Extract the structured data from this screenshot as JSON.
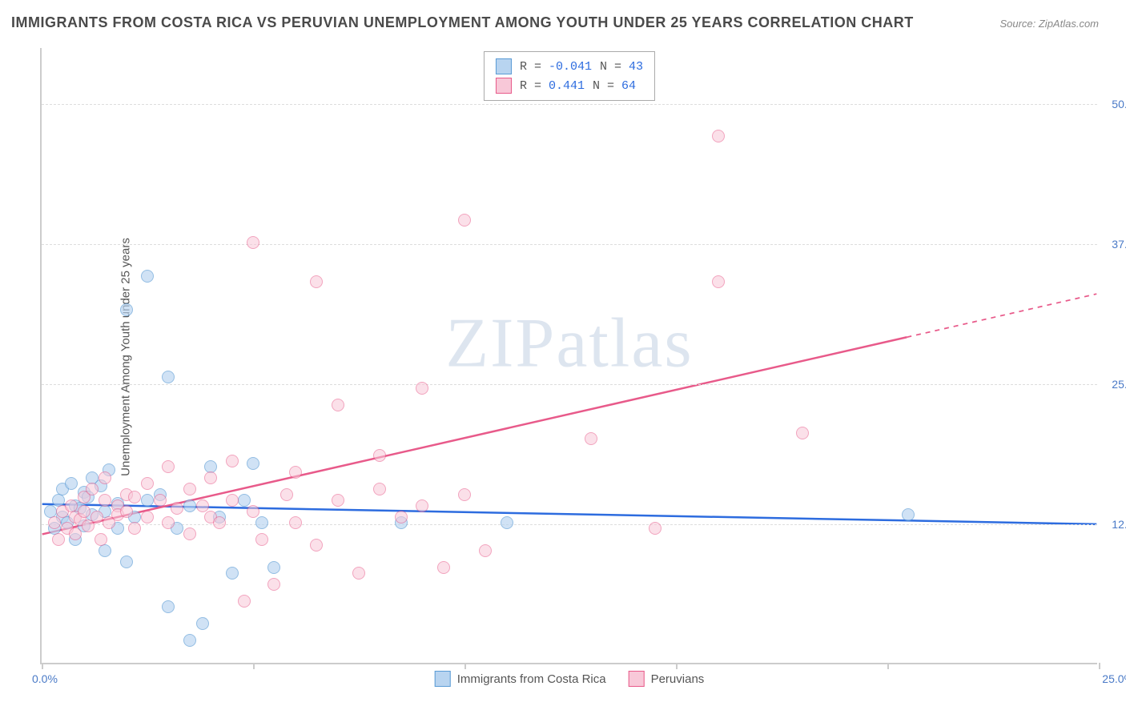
{
  "title": "IMMIGRANTS FROM COSTA RICA VS PERUVIAN UNEMPLOYMENT AMONG YOUTH UNDER 25 YEARS CORRELATION CHART",
  "source": "Source: ZipAtlas.com",
  "y_axis_label": "Unemployment Among Youth under 25 years",
  "watermark": {
    "bold": "ZIP",
    "light": "atlas"
  },
  "chart": {
    "type": "scatter",
    "xlim": [
      0,
      25
    ],
    "ylim": [
      0,
      55
    ],
    "x_ticks": [
      0,
      5,
      10,
      15,
      20,
      25
    ],
    "x_tick_labels_shown": {
      "left": "0.0%",
      "right": "25.0%"
    },
    "y_gridlines": [
      12.5,
      25.0,
      37.5,
      50.0
    ],
    "y_tick_labels": [
      "12.5%",
      "25.0%",
      "37.5%",
      "50.0%"
    ],
    "background_color": "#ffffff",
    "grid_color": "#dddddd",
    "axis_color": "#cccccc",
    "tick_label_color": "#4a7ac7",
    "marker_radius": 8,
    "marker_stroke_width": 1.5,
    "trend_line_width": 2.5
  },
  "series": [
    {
      "name": "Immigrants from Costa Rica",
      "fill_color": "#b8d4f0",
      "stroke_color": "#5a9bd5",
      "fill_opacity": 0.65,
      "R": "-0.041",
      "N": "43",
      "trend": {
        "x1": 0,
        "y1": 14.2,
        "x2": 25,
        "y2": 12.4,
        "color": "#2d6cdf",
        "dash_after_x": 25
      },
      "points": [
        [
          0.2,
          13.5
        ],
        [
          0.3,
          12.0
        ],
        [
          0.4,
          14.5
        ],
        [
          0.5,
          13.0
        ],
        [
          0.5,
          15.5
        ],
        [
          0.6,
          12.5
        ],
        [
          0.7,
          16.0
        ],
        [
          0.8,
          14.0
        ],
        [
          0.8,
          11.0
        ],
        [
          0.9,
          13.8
        ],
        [
          1.0,
          15.2
        ],
        [
          1.0,
          12.2
        ],
        [
          1.1,
          14.8
        ],
        [
          1.2,
          16.5
        ],
        [
          1.2,
          13.2
        ],
        [
          1.4,
          15.8
        ],
        [
          1.5,
          10.0
        ],
        [
          1.5,
          13.5
        ],
        [
          1.6,
          17.2
        ],
        [
          1.8,
          14.2
        ],
        [
          1.8,
          12.0
        ],
        [
          2.0,
          9.0
        ],
        [
          2.0,
          31.5
        ],
        [
          2.2,
          13.0
        ],
        [
          2.5,
          34.5
        ],
        [
          2.5,
          14.5
        ],
        [
          2.8,
          15.0
        ],
        [
          3.0,
          25.5
        ],
        [
          3.0,
          5.0
        ],
        [
          3.2,
          12.0
        ],
        [
          3.5,
          2.0
        ],
        [
          3.5,
          14.0
        ],
        [
          3.8,
          3.5
        ],
        [
          4.0,
          17.5
        ],
        [
          4.2,
          13.0
        ],
        [
          4.5,
          8.0
        ],
        [
          4.8,
          14.5
        ],
        [
          5.0,
          17.8
        ],
        [
          5.2,
          12.5
        ],
        [
          5.5,
          8.5
        ],
        [
          8.5,
          12.5
        ],
        [
          11.0,
          12.5
        ],
        [
          20.5,
          13.2
        ]
      ]
    },
    {
      "name": "Peruvians",
      "fill_color": "#f8c8d8",
      "stroke_color": "#e85a8a",
      "fill_opacity": 0.55,
      "R": "0.441",
      "N": "64",
      "trend": {
        "x1": 0,
        "y1": 11.5,
        "x2": 25,
        "y2": 33.0,
        "color": "#e85a8a",
        "dash_after_x": 20.5
      },
      "points": [
        [
          0.3,
          12.5
        ],
        [
          0.4,
          11.0
        ],
        [
          0.5,
          13.5
        ],
        [
          0.6,
          12.0
        ],
        [
          0.7,
          14.0
        ],
        [
          0.8,
          13.0
        ],
        [
          0.8,
          11.5
        ],
        [
          0.9,
          12.8
        ],
        [
          1.0,
          13.5
        ],
        [
          1.0,
          14.8
        ],
        [
          1.1,
          12.2
        ],
        [
          1.2,
          15.5
        ],
        [
          1.3,
          13.0
        ],
        [
          1.4,
          11.0
        ],
        [
          1.5,
          14.5
        ],
        [
          1.5,
          16.5
        ],
        [
          1.6,
          12.5
        ],
        [
          1.8,
          14.0
        ],
        [
          1.8,
          13.2
        ],
        [
          2.0,
          15.0
        ],
        [
          2.0,
          13.5
        ],
        [
          2.2,
          12.0
        ],
        [
          2.2,
          14.8
        ],
        [
          2.5,
          13.0
        ],
        [
          2.5,
          16.0
        ],
        [
          2.8,
          14.5
        ],
        [
          3.0,
          17.5
        ],
        [
          3.0,
          12.5
        ],
        [
          3.2,
          13.8
        ],
        [
          3.5,
          15.5
        ],
        [
          3.5,
          11.5
        ],
        [
          3.8,
          14.0
        ],
        [
          4.0,
          13.0
        ],
        [
          4.0,
          16.5
        ],
        [
          4.2,
          12.5
        ],
        [
          4.5,
          18.0
        ],
        [
          4.5,
          14.5
        ],
        [
          4.8,
          5.5
        ],
        [
          5.0,
          37.5
        ],
        [
          5.0,
          13.5
        ],
        [
          5.2,
          11.0
        ],
        [
          5.5,
          7.0
        ],
        [
          5.8,
          15.0
        ],
        [
          6.0,
          12.5
        ],
        [
          6.0,
          17.0
        ],
        [
          6.5,
          34.0
        ],
        [
          6.5,
          10.5
        ],
        [
          7.0,
          23.0
        ],
        [
          7.0,
          14.5
        ],
        [
          7.5,
          8.0
        ],
        [
          8.0,
          18.5
        ],
        [
          8.0,
          15.5
        ],
        [
          8.5,
          13.0
        ],
        [
          9.0,
          24.5
        ],
        [
          9.0,
          14.0
        ],
        [
          9.5,
          8.5
        ],
        [
          10.0,
          39.5
        ],
        [
          10.0,
          15.0
        ],
        [
          10.5,
          10.0
        ],
        [
          13.0,
          20.0
        ],
        [
          14.5,
          12.0
        ],
        [
          16.0,
          34.0
        ],
        [
          16.0,
          47.0
        ],
        [
          18.0,
          20.5
        ]
      ]
    }
  ],
  "legend_top": {
    "rows": [
      {
        "swatch_series": 0,
        "r_label": "R =",
        "r_value": "-0.041",
        "n_label": "N =",
        "n_value": "43"
      },
      {
        "swatch_series": 1,
        "r_label": "R =",
        "r_value": " 0.441",
        "n_label": "N =",
        "n_value": "64"
      }
    ]
  },
  "legend_bottom": {
    "items": [
      {
        "swatch_series": 0,
        "label": "Immigrants from Costa Rica"
      },
      {
        "swatch_series": 1,
        "label": "Peruvians"
      }
    ]
  }
}
